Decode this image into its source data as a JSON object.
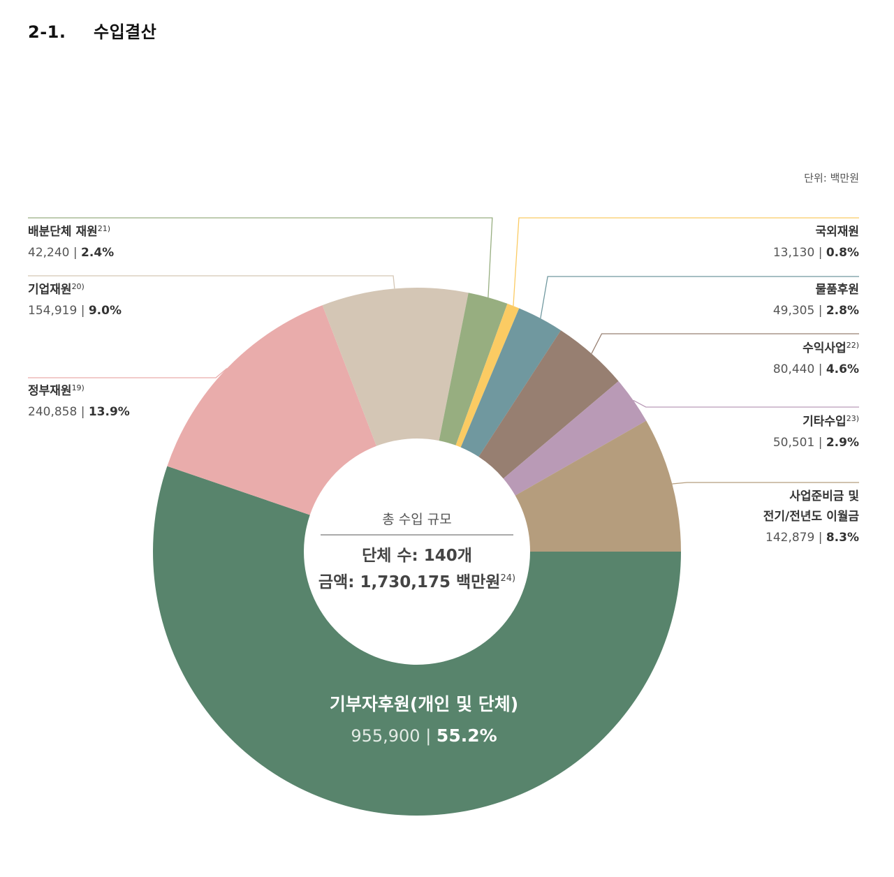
{
  "header": {
    "section_number": "2-1.",
    "section_title": "수입결산"
  },
  "unit_label": "단위: 백만원",
  "center": {
    "caption": "총 수입 규모",
    "count_line": "단체 수: 140개",
    "amount_line": "금액: 1,730,175 백만원",
    "amount_note": "24)"
  },
  "chart_data": {
    "type": "pie",
    "unit": "백만원",
    "total": 1730175,
    "organization_count": 140,
    "slices": [
      {
        "name": "기부자후원(개인 및 단체)",
        "note": "",
        "value": 955900,
        "value_label": "955,900",
        "percent": 55.2,
        "percent_label": "55.2%",
        "color": "#58846c"
      },
      {
        "name": "정부재원",
        "note": "19)",
        "value": 240858,
        "value_label": "240,858",
        "percent": 13.9,
        "percent_label": "13.9%",
        "color": "#e9acab"
      },
      {
        "name": "기업재원",
        "note": "20)",
        "value": 154919,
        "value_label": "154,919",
        "percent": 9.0,
        "percent_label": "9.0%",
        "color": "#d4c6b5"
      },
      {
        "name": "배분단체 재원",
        "note": "21)",
        "value": 42240,
        "value_label": "42,240",
        "percent": 2.4,
        "percent_label": "2.4%",
        "color": "#97ae80"
      },
      {
        "name": "국외재원",
        "note": "",
        "value": 13130,
        "value_label": "13,130",
        "percent": 0.8,
        "percent_label": "0.8%",
        "color": "#fbcb63"
      },
      {
        "name": "물품후원",
        "note": "",
        "value": 49305,
        "value_label": "49,305",
        "percent": 2.8,
        "percent_label": "2.8%",
        "color": "#70989f"
      },
      {
        "name": "수익사업",
        "note": "22)",
        "value": 80440,
        "value_label": "80,440",
        "percent": 4.6,
        "percent_label": "4.6%",
        "color": "#977f71"
      },
      {
        "name": "기타수입",
        "note": "23)",
        "value": 50501,
        "value_label": "50,501",
        "percent": 2.9,
        "percent_label": "2.9%",
        "color": "#b99ab6"
      },
      {
        "name": "사업준비금 및",
        "name_line2": "전기/전년도 이월금",
        "note": "",
        "value": 142879,
        "value_label": "142,879",
        "percent": 8.3,
        "percent_label": "8.3%",
        "color": "#b59d7d"
      }
    ]
  }
}
